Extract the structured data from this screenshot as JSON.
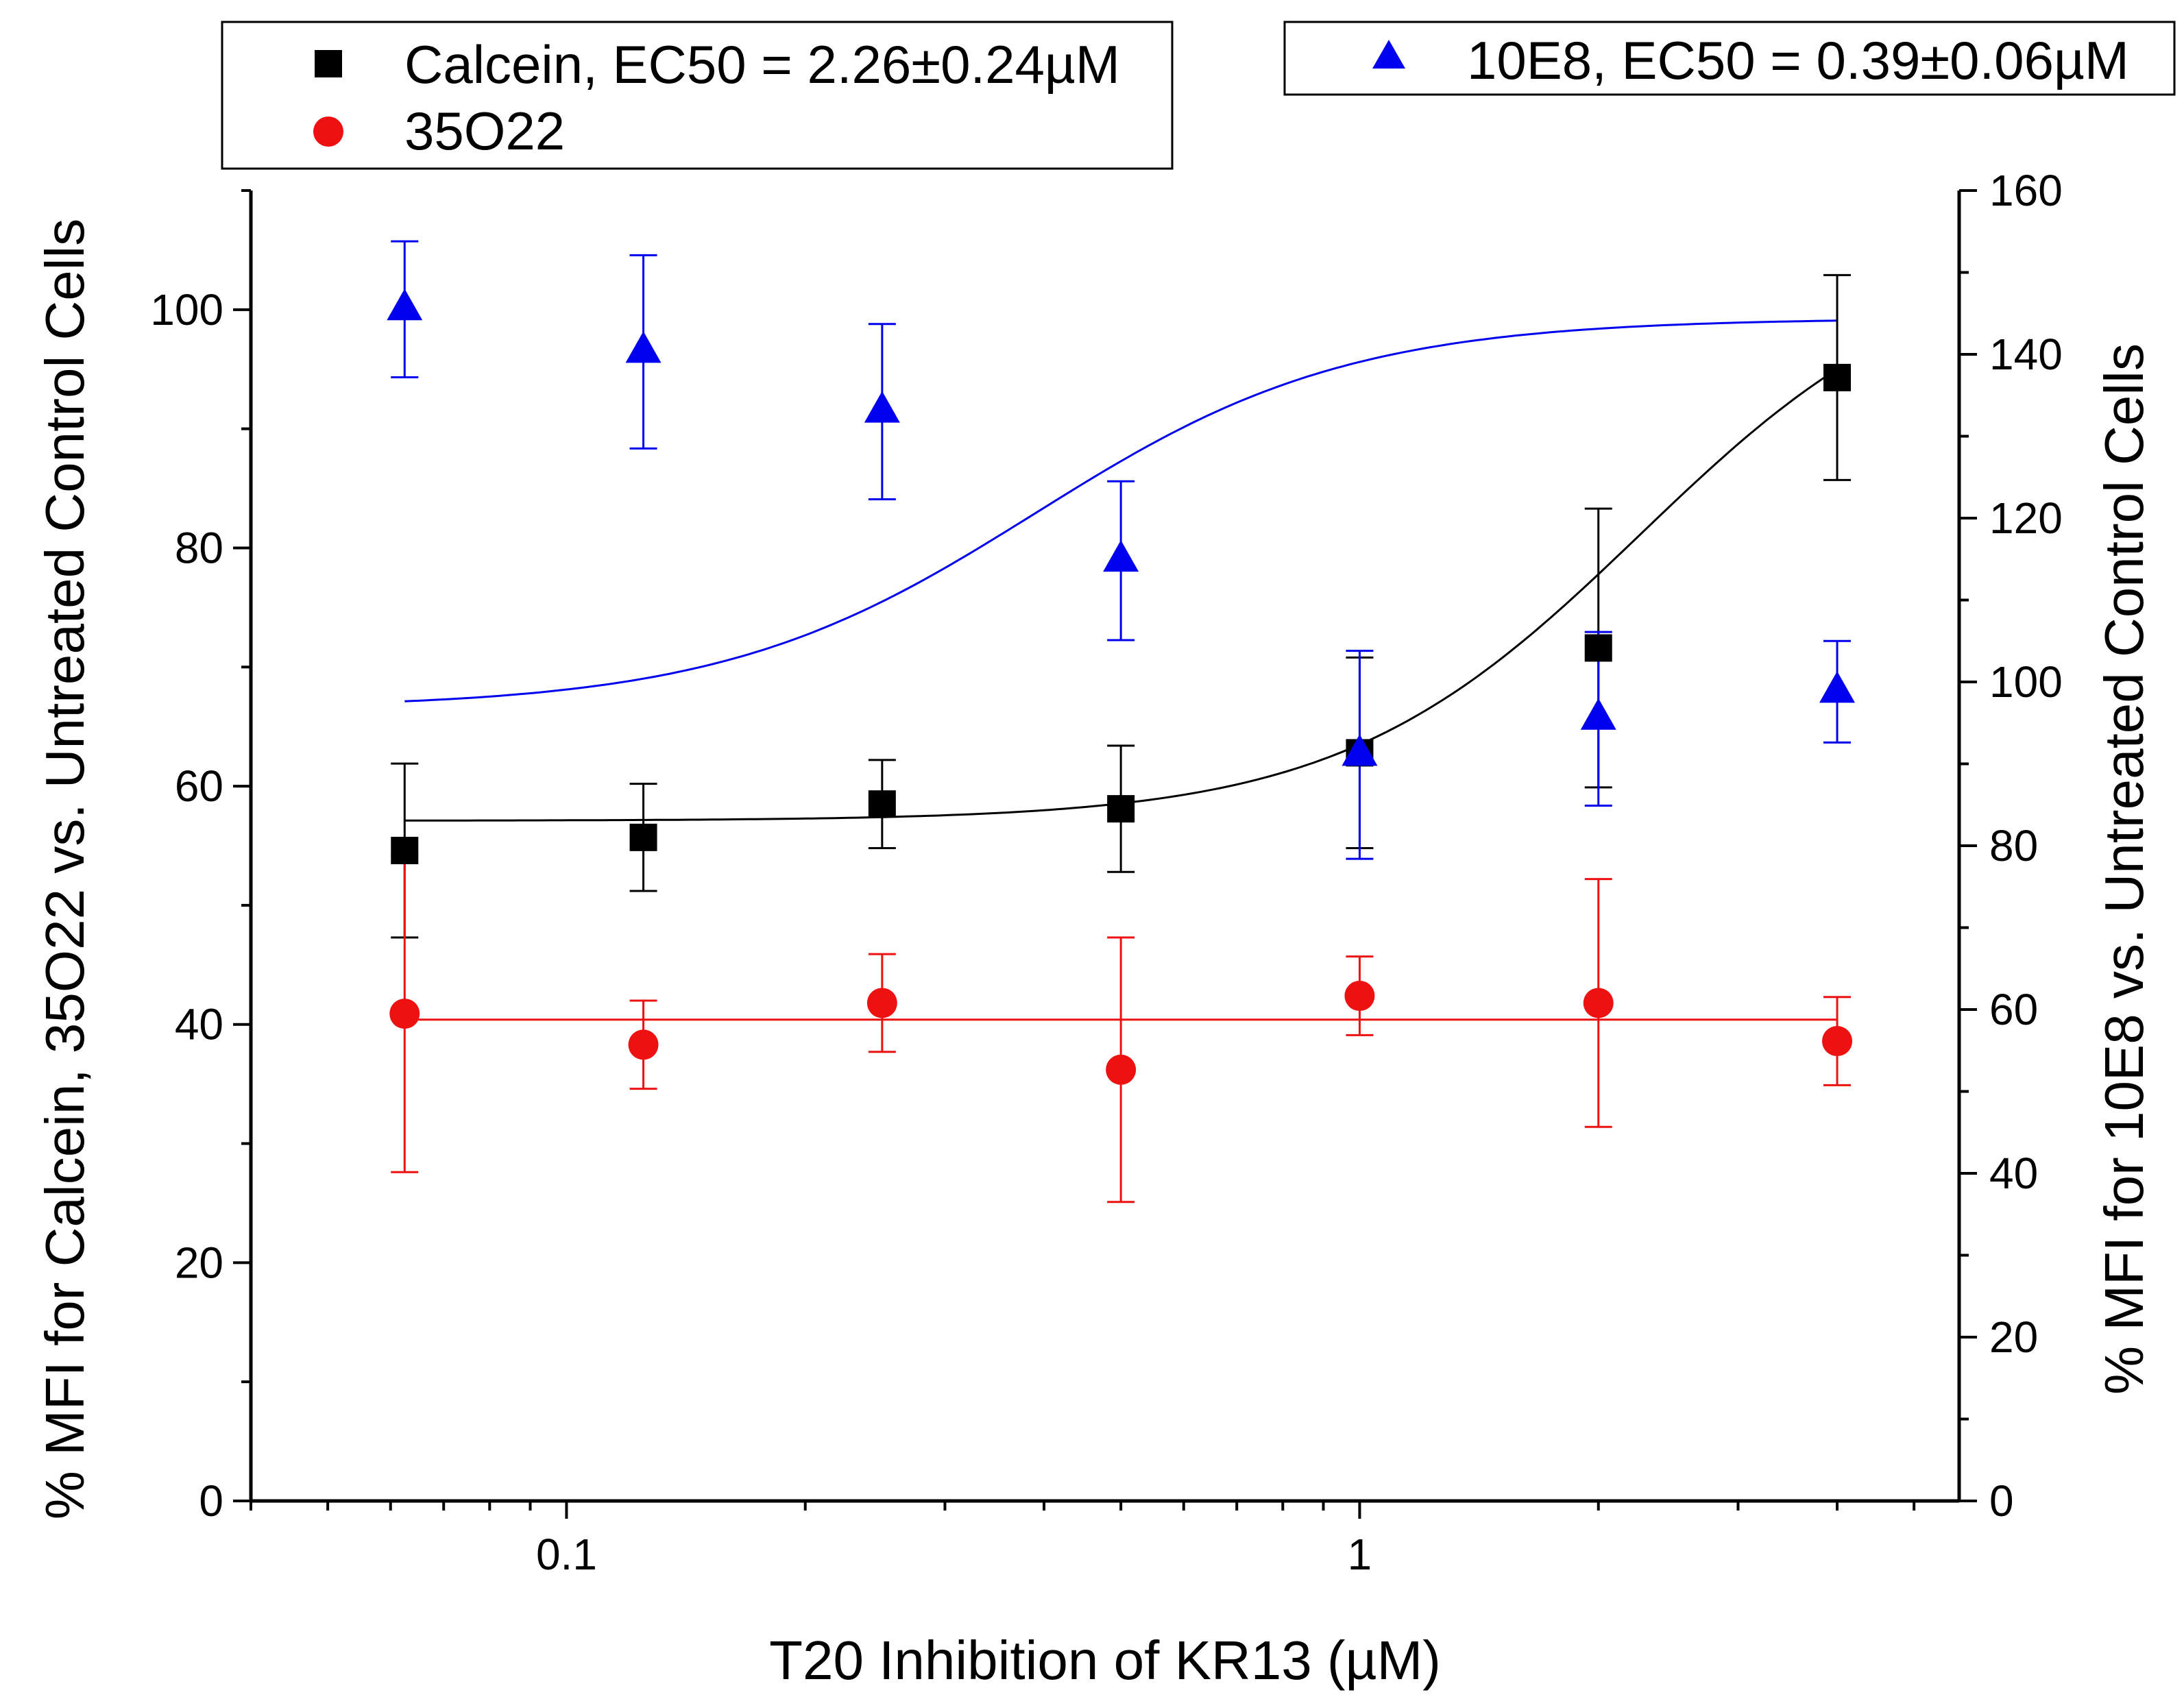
{
  "chart_data": {
    "type": "scatter",
    "title": "",
    "xlabel": "T20 Inhibition of KR13 (µM)",
    "ylabel_left": "% MFI for Calcein, 35O22 vs. Untreated Control Cells",
    "ylabel_right": "% MFI for 10E8 vs. Untreated Control Cells",
    "x_scale": "log",
    "xlim": [
      0.04,
      5.7
    ],
    "x_ticks": [
      0.1,
      1
    ],
    "x_tick_labels": [
      "0.1",
      "1"
    ],
    "ylim_left": [
      0,
      110
    ],
    "y_ticks_left": [
      0,
      20,
      40,
      60,
      80,
      100
    ],
    "ylim_right": [
      0,
      160
    ],
    "y_ticks_right": [
      0,
      20,
      40,
      60,
      80,
      100,
      120,
      140,
      160
    ],
    "x": [
      0.0625,
      0.125,
      0.25,
      0.5,
      1,
      2,
      4
    ],
    "series": [
      {
        "name": "Calcein",
        "legend_label": "Calcein, EC50 = 2.26±0.24µM",
        "axis": "left",
        "marker": "square",
        "color": "#000000",
        "values": [
          54.6,
          55.7,
          58.5,
          58.1,
          62.8,
          71.6,
          94.3
        ],
        "errors": [
          7.3,
          4.5,
          3.7,
          5.3,
          8.0,
          11.7,
          8.6
        ],
        "fit": {
          "type": "sigmoid",
          "bottom": 57.1,
          "top": 105.2,
          "ec50": 2.26,
          "hill": 2.3
        }
      },
      {
        "name": "35O22",
        "legend_label": "35O22",
        "axis": "left",
        "marker": "circle",
        "color": "#ee1111",
        "values": [
          40.9,
          38.3,
          41.8,
          36.2,
          42.4,
          41.8,
          38.6
        ],
        "errors": [
          13.3,
          3.7,
          4.1,
          11.1,
          3.3,
          10.4,
          3.7
        ],
        "fit": {
          "type": "constant",
          "value": 40.4
        }
      },
      {
        "name": "10E8",
        "legend_label": "10E8, EC50 = 0.39±0.06µM",
        "axis": "right",
        "marker": "triangle",
        "color": "#0000ee",
        "values": [
          145.5,
          140.3,
          133.0,
          114.8,
          91.1,
          95.5,
          98.8
        ],
        "errors": [
          8.3,
          11.8,
          10.7,
          9.7,
          12.7,
          10.6,
          6.2
        ],
        "fit": {
          "type": "sigmoid",
          "top": 144.4,
          "bottom": 96.8,
          "ec50": 0.39,
          "hill": 2.2
        }
      }
    ]
  }
}
